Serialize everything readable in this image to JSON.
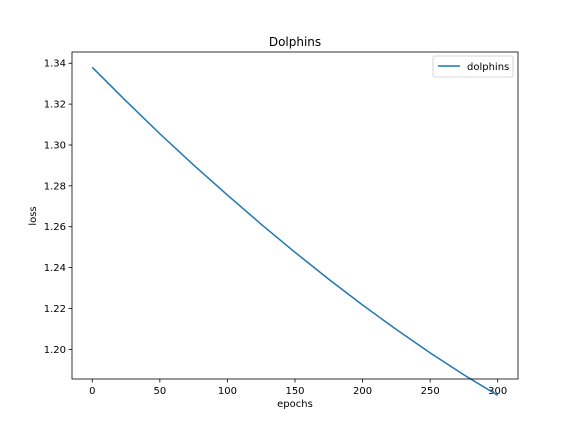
{
  "chart_data": {
    "type": "line",
    "title": "Dolphins",
    "xlabel": "epochs",
    "ylabel": "loss",
    "xlim": [
      -15,
      315
    ],
    "ylim": [
      1.1855,
      1.3455
    ],
    "xticks": [
      0,
      50,
      100,
      150,
      200,
      250,
      300
    ],
    "yticks": [
      1.2,
      1.22,
      1.24,
      1.26,
      1.28,
      1.3,
      1.32,
      1.34
    ],
    "grid": false,
    "legend_position": "top-right",
    "series": [
      {
        "name": "dolphins",
        "color": "#1f77b4",
        "x": [
          0,
          25,
          50,
          75,
          100,
          125,
          150,
          175,
          200,
          225,
          250,
          275,
          300
        ],
        "y": [
          1.338,
          1.3215,
          1.3055,
          1.2902,
          1.2755,
          1.2612,
          1.2475,
          1.2343,
          1.2217,
          1.2097,
          1.1983,
          1.1875,
          1.1775
        ]
      }
    ]
  }
}
